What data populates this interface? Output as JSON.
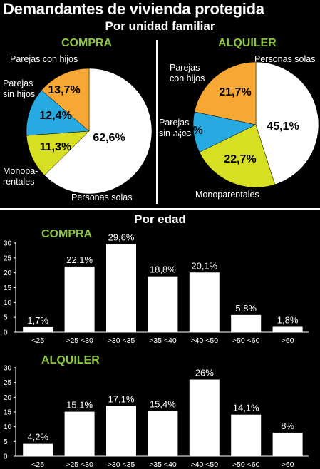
{
  "header": {
    "title": "Demandantes de vivienda protegida",
    "subtitle_family": "Por unidad familiar",
    "subtitle_age": "Por edad"
  },
  "colors": {
    "white": "#ffffff",
    "orange": "#f7a733",
    "blue": "#27a9e1",
    "yellow": "#d7df23",
    "green_heading": "#8cc63f"
  },
  "chart_data": [
    {
      "type": "pie",
      "title": "COMPRA",
      "slices": [
        {
          "label": "Personas solas",
          "value": 62.6,
          "display": "62,6%",
          "color": "#ffffff"
        },
        {
          "label": "Monoparentales",
          "label_lines": [
            "Monopa-",
            "rentales"
          ],
          "value": 11.3,
          "display": "11,3%",
          "color": "#d7df23"
        },
        {
          "label": "Parejas sin hijos",
          "label_lines": [
            "Parejas",
            "sin hijos"
          ],
          "value": 12.4,
          "display": "12,4%",
          "color": "#27a9e1"
        },
        {
          "label": "Parejas con hijos",
          "label_lines": [
            "Parejas con hijos"
          ],
          "value": 13.7,
          "display": "13,7%",
          "color": "#f7a733"
        }
      ]
    },
    {
      "type": "pie",
      "title": "ALQUILER",
      "slices": [
        {
          "label": "Personas solas",
          "value": 45.1,
          "display": "45,1%",
          "color": "#ffffff"
        },
        {
          "label": "Monoparentales",
          "label_lines": [
            "Monoparentales"
          ],
          "value": 22.7,
          "display": "22,7%",
          "color": "#d7df23"
        },
        {
          "label": "Parejas sin hijos",
          "label_lines": [
            "Parejas",
            "sin hijos"
          ],
          "value": 10.5,
          "display": "10,5%",
          "color": "#27a9e1"
        },
        {
          "label": "Parejas con hijos",
          "label_lines": [
            "Parejas",
            "con hijos"
          ],
          "value": 21.7,
          "display": "21,7%",
          "color": "#f7a733"
        }
      ]
    },
    {
      "type": "bar",
      "title": "COMPRA",
      "categories": [
        "<25",
        ">25 <30",
        ">30 <35",
        ">35 <40",
        ">40 <50",
        ">50 <60",
        ">60"
      ],
      "values": [
        1.7,
        22.1,
        29.6,
        18.8,
        20.1,
        5.8,
        1.8
      ],
      "value_labels": [
        "1,7%",
        "22,1%",
        "29,6%",
        "18,8%",
        "20,1%",
        "5,8%",
        "1,8%"
      ],
      "ylim": [
        0,
        30
      ],
      "yticks": [
        "0",
        "5",
        "10",
        "15",
        "20",
        "25",
        "30"
      ]
    },
    {
      "type": "bar",
      "title": "ALQUILER",
      "categories": [
        "<25",
        ">25 <30",
        ">30 <35",
        ">35 <40",
        ">40 <50",
        ">50 <60",
        ">60"
      ],
      "values": [
        4.2,
        15.1,
        17.1,
        15.4,
        26,
        14.1,
        8
      ],
      "value_labels": [
        "4,2%",
        "15,1%",
        "17,1%",
        "15,4%",
        "26%",
        "14,1%",
        "8%"
      ],
      "ylim": [
        0,
        30
      ],
      "yticks": [
        "0",
        "5",
        "10",
        "15",
        "20",
        "25",
        "30"
      ]
    }
  ]
}
